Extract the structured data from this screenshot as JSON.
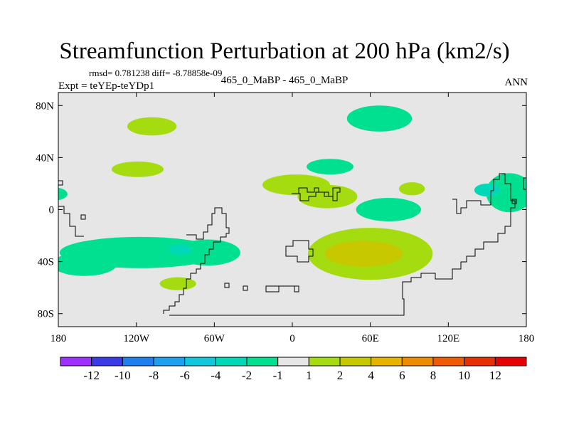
{
  "chart_data": {
    "type": "contour-map",
    "title": "Streamfunction Perturbation at 200 hPa (km2/s)",
    "stats_label": "rmsd= 0.781238 diff= -8.78858e-09",
    "experiment_label": "Expt = teYEp-teYDp1",
    "case_label": "465_0_MaBP - 465_0_MaBP",
    "season_label": "ANN",
    "x_ticks": [
      {
        "value": -180,
        "label": "180"
      },
      {
        "value": -120,
        "label": "120W"
      },
      {
        "value": -60,
        "label": "60W"
      },
      {
        "value": 0,
        "label": "0"
      },
      {
        "value": 60,
        "label": "60E"
      },
      {
        "value": 120,
        "label": "120E"
      },
      {
        "value": 180,
        "label": "180"
      }
    ],
    "y_ticks": [
      {
        "value": 80,
        "label": "80N"
      },
      {
        "value": 40,
        "label": "40N"
      },
      {
        "value": 0,
        "label": "0"
      },
      {
        "value": -40,
        "label": "40S"
      },
      {
        "value": -80,
        "label": "80S"
      }
    ],
    "xlim": [
      -180,
      180
    ],
    "ylim": [
      -90,
      90
    ],
    "colorbar": {
      "boundaries": [
        "-12",
        "-10",
        "-8",
        "-6",
        "-4",
        "-2",
        "-1",
        "1",
        "2",
        "4",
        "6",
        "8",
        "10",
        "12"
      ],
      "colors": [
        "#9b30ff",
        "#3a3ae6",
        "#1e7ff0",
        "#1ea0f0",
        "#10c8dc",
        "#00d8b8",
        "#00e090",
        "#e6e6e6",
        "#a4dc10",
        "#c8c800",
        "#e6b400",
        "#ee8c00",
        "#f05a00",
        "#e63000",
        "#e60000"
      ]
    },
    "anomalies": [
      {
        "lon": 167,
        "lat": 13,
        "rlon": 18,
        "rlat": 15,
        "level": "-2 to -1"
      },
      {
        "lon": 150,
        "lat": 15,
        "rlon": 10,
        "rlat": 5,
        "level": "-4 to -2"
      },
      {
        "lon": 173,
        "lat": 13,
        "rlon": 9,
        "rlat": 11,
        "level": "-2 to -1"
      },
      {
        "lon": 67,
        "lat": 70,
        "rlon": 25,
        "rlat": 10,
        "level": "-2 to -1"
      },
      {
        "lon": 29,
        "lat": 33,
        "rlon": 18,
        "rlat": 6,
        "level": "-2 to -1"
      },
      {
        "lon": 74,
        "lat": 0,
        "rlon": 25,
        "rlat": 9,
        "level": "-2 to -1"
      },
      {
        "lon": -183,
        "lat": 12,
        "rlon": 10,
        "rlat": 5,
        "level": "-2 to -1"
      },
      {
        "lon": -117,
        "lat": -33,
        "rlon": 62,
        "rlat": 12,
        "level": "-2 to -1"
      },
      {
        "lon": -160,
        "lat": -42,
        "rlon": 25,
        "rlat": 9,
        "level": "-2 to -1"
      },
      {
        "lon": -65,
        "lat": -33,
        "rlon": 25,
        "rlat": 10,
        "level": "-2 to -1"
      },
      {
        "lon": -86,
        "lat": -31,
        "rlon": 9,
        "rlat": 4,
        "level": "-4 to -2"
      },
      {
        "lon": -108,
        "lat": 64,
        "rlon": 19,
        "rlat": 7,
        "level": "1 to 2"
      },
      {
        "lon": -119,
        "lat": 31,
        "rlon": 20,
        "rlat": 6,
        "level": "1 to 2"
      },
      {
        "lon": -88,
        "lat": -57,
        "rlon": 14,
        "rlat": 5,
        "level": "1 to 2"
      },
      {
        "lon": 3,
        "lat": 19,
        "rlon": 26,
        "rlat": 8,
        "level": "1 to 2"
      },
      {
        "lon": 27,
        "lat": 10,
        "rlon": 23,
        "rlat": 9,
        "level": "1 to 2"
      },
      {
        "lon": 92,
        "lat": 16,
        "rlon": 10,
        "rlat": 5,
        "level": "1 to 2"
      },
      {
        "lon": 60,
        "lat": -34,
        "rlon": 48,
        "rlat": 20,
        "level": "1 to 2"
      },
      {
        "lon": 55,
        "lat": -34,
        "rlon": 30,
        "rlat": 10,
        "level": "2 to 4"
      }
    ]
  }
}
